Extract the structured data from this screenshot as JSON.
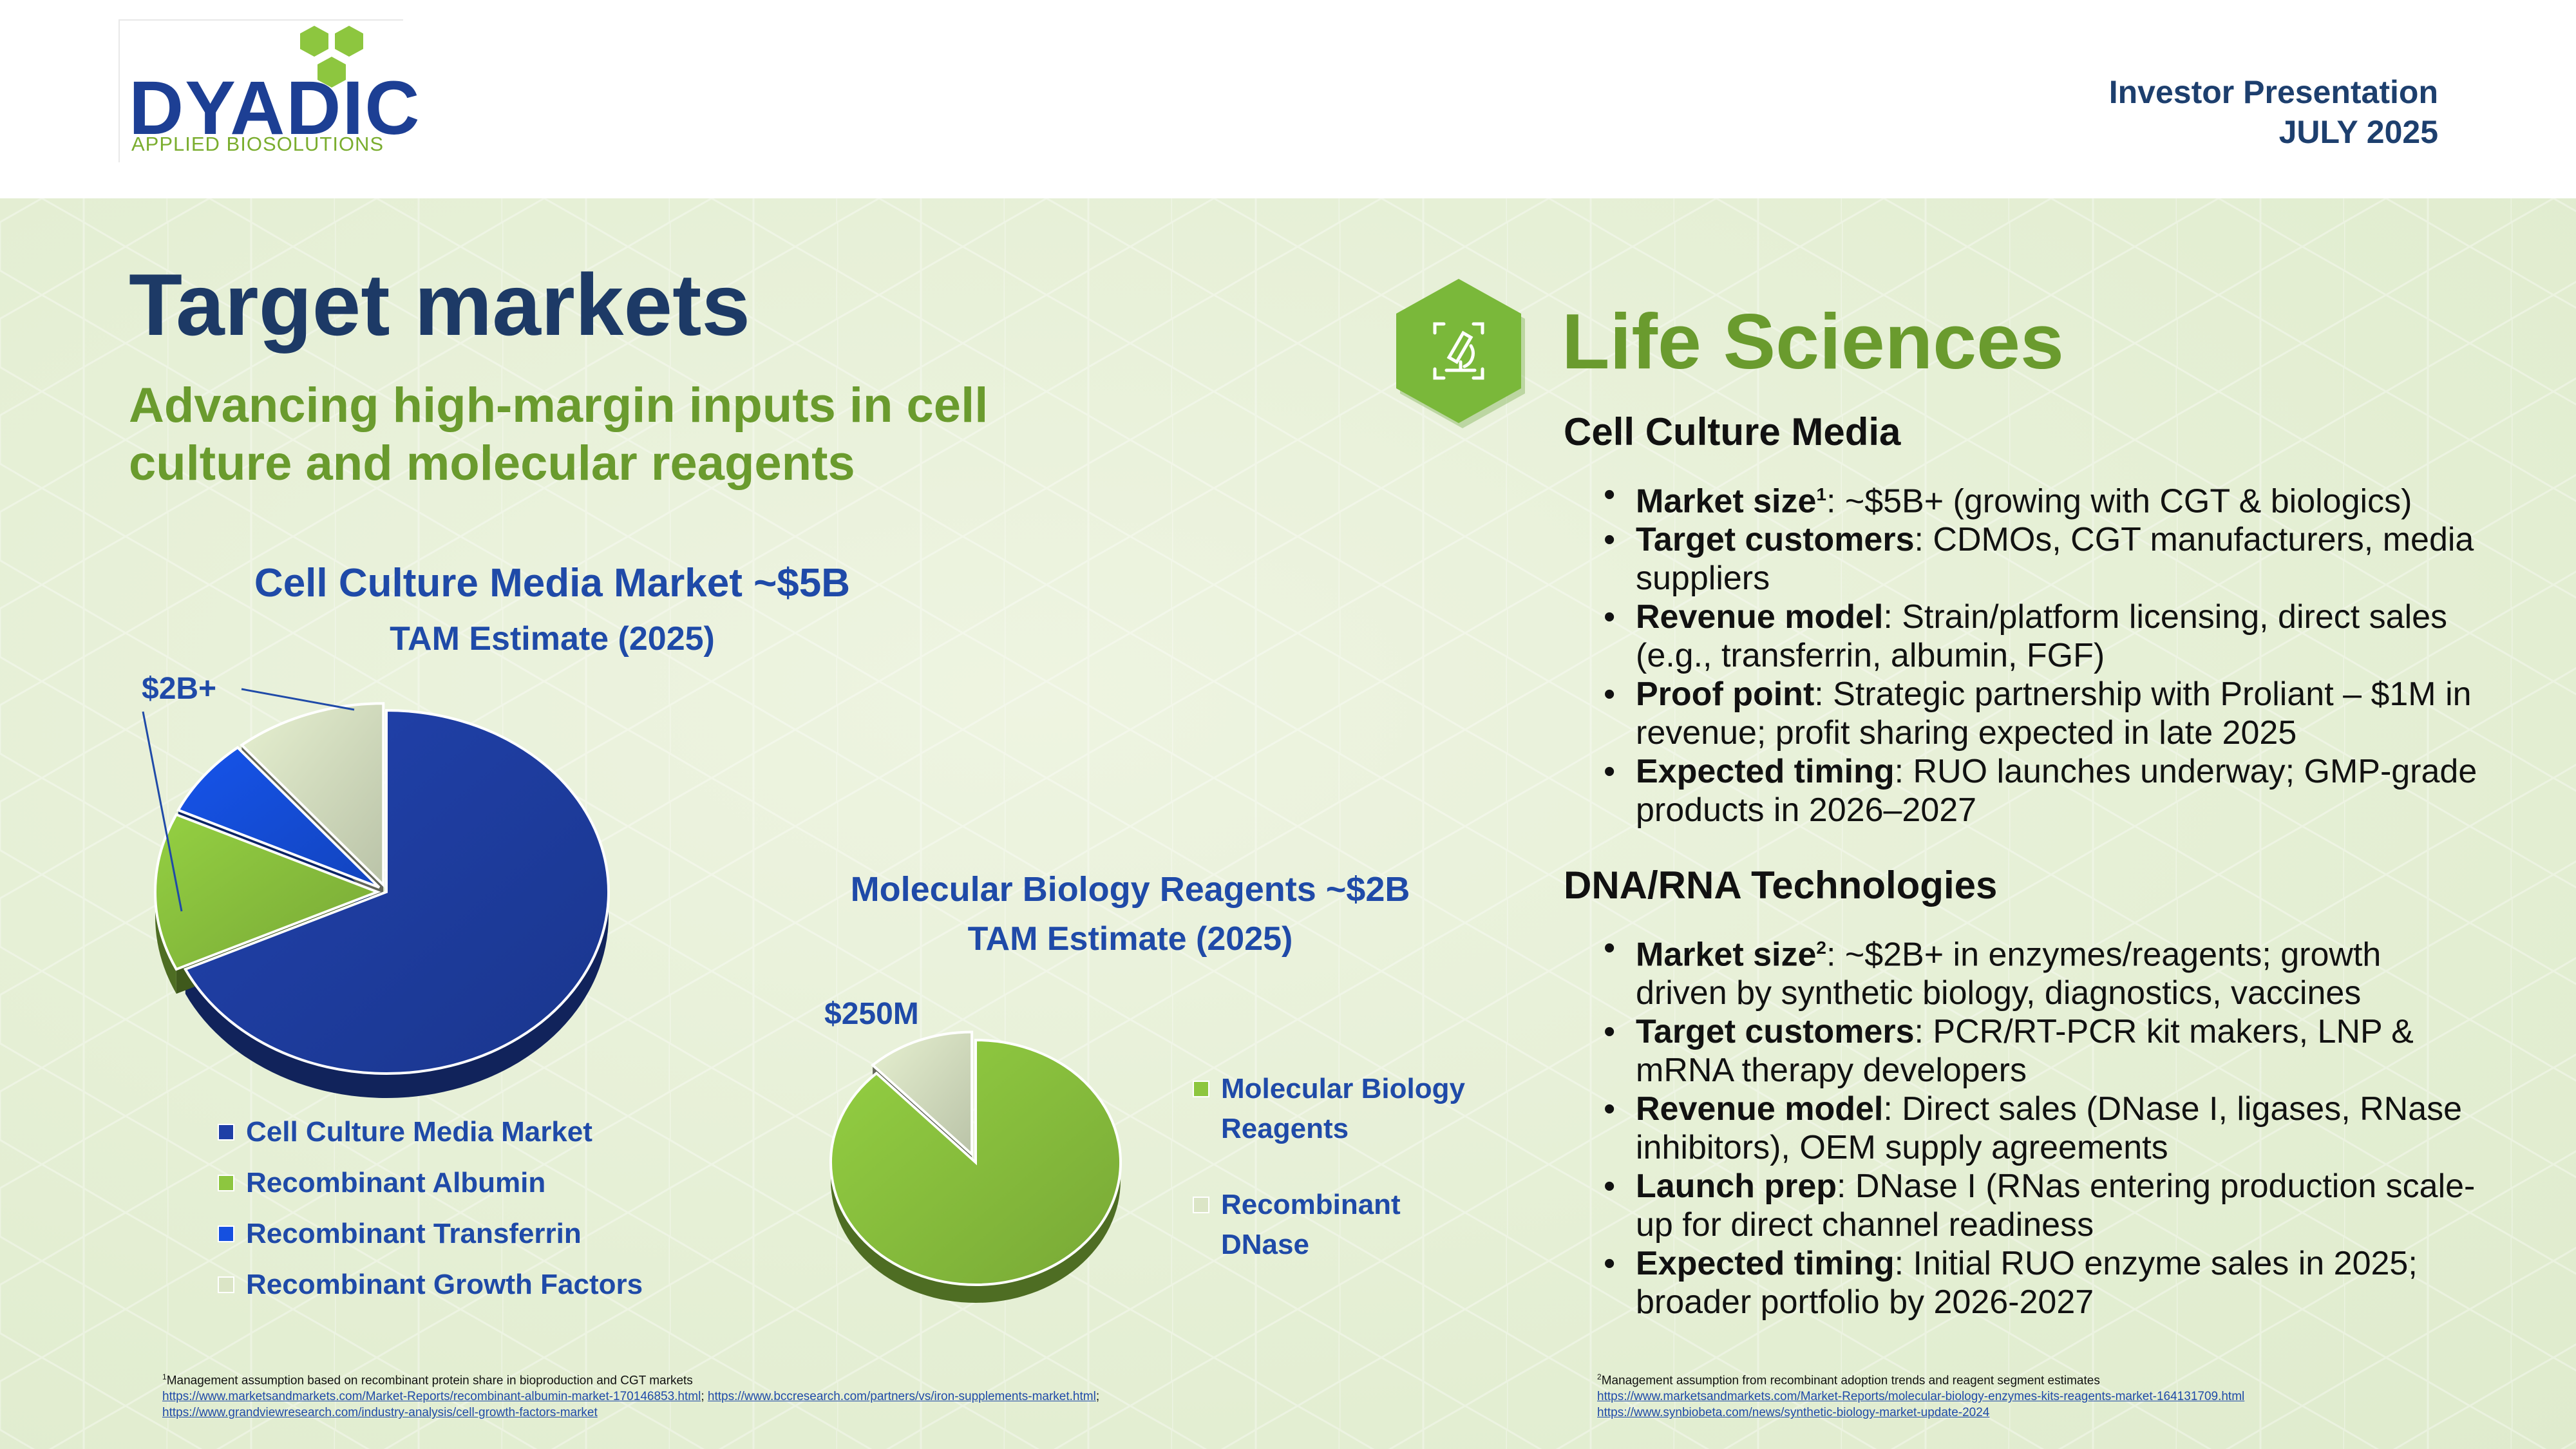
{
  "header": {
    "logo_name": "DYADIC",
    "logo_tagline": "APPLIED BIOSOLUTIONS",
    "presentation": "Investor Presentation",
    "date": "JULY 2025"
  },
  "page": {
    "title": "Target markets",
    "subtitle": "Advancing high-margin inputs in cell culture and molecular reagents"
  },
  "colors": {
    "navy_title": "#1d3a66",
    "green_accent": "#6a9b2e",
    "chart_blue": "#1f4aa8",
    "panel_bg": "#e3eed2"
  },
  "chart_data": [
    {
      "type": "pie",
      "title": "Cell Culture Media Market ~$5B",
      "subtitle": "TAM Estimate (2025)",
      "callout": "$2B+",
      "labels": [
        "Cell Culture Media Market",
        "Recombinant Albumin",
        "Recombinant Transferrin",
        "Recombinant Growth Factors"
      ],
      "values": [
        68,
        14,
        7,
        11
      ],
      "colors": [
        "#1f3fa6",
        "#8dc63f",
        "#1550e0",
        "#dbe5c6"
      ],
      "legend": "bottom-left",
      "exploded": [
        false,
        true,
        true,
        true
      ]
    },
    {
      "type": "pie",
      "title": "Molecular Biology Reagents ~$2B",
      "subtitle": "TAM  Estimate (2025)",
      "callout": "$250M",
      "labels": [
        "Molecular Biology Reagents",
        "Recombinant DNase"
      ],
      "values": [
        88,
        12
      ],
      "colors": [
        "#8dc63f",
        "#dbe5c6"
      ],
      "legend": "right",
      "exploded": [
        false,
        true
      ]
    }
  ],
  "life_sciences": {
    "icon": "microscope-icon",
    "title": "Life Sciences",
    "cell_culture": {
      "heading": "Cell Culture Media",
      "items": [
        {
          "label": "Market size",
          "sup": "1",
          "text": ": ~$5B+ (growing with CGT & biologics)"
        },
        {
          "label": "Target customers",
          "text": ": CDMOs, CGT manufacturers, media suppliers"
        },
        {
          "label": "Revenue model",
          "text": ": Strain/platform licensing, direct sales (e.g., transferrin, albumin, FGF)"
        },
        {
          "label": "Proof point",
          "text": ": Strategic partnership with Proliant – $1M in revenue; profit sharing expected in late 2025"
        },
        {
          "label": "Expected timing",
          "text": ": RUO launches underway; GMP-grade products in 2026–2027"
        }
      ]
    },
    "dna_rna": {
      "heading": "DNA/RNA Technologies",
      "items": [
        {
          "label": "Market size",
          "sup": "2",
          "text": ": ~$2B+ in enzymes/reagents; growth driven by synthetic biology, diagnostics, vaccines"
        },
        {
          "label": "Target customers",
          "text": ": PCR/RT-PCR kit makers, LNP & mRNA therapy developers"
        },
        {
          "label": "Revenue model",
          "text": ": Direct sales (DNase I, ligases, RNase inhibitors), OEM supply agreements"
        },
        {
          "label": "Launch prep",
          "text": ": DNase I (RNas entering production scale-up for direct channel readiness"
        },
        {
          "label": "Expected timing",
          "text": ": Initial RUO enzyme sales in 2025; broader portfolio by 2026-2027"
        }
      ]
    }
  },
  "footnotes": {
    "fn1": {
      "mark": "1",
      "text": "Management assumption based on recombinant protein share in bioproduction and CGT markets",
      "link1": "https://www.marketsandmarkets.com/Market-Reports/recombinant-albumin-market-170146853.html",
      "sep1": "; ",
      "link2": "https://www.bccresearch.com/partners/vs/iron-supplements-market.html",
      "sep2": "; ",
      "link3": "https://www.grandviewresearch.com/industry-analysis/cell-growth-factors-market"
    },
    "fn2": {
      "mark": "2",
      "text": "Management assumption from recombinant adoption trends and reagent segment estimates",
      "link1": "https://www.marketsandmarkets.com/Market-Reports/molecular-biology-enzymes-kits-reagents-market-164131709.html",
      "link2": "https://www.synbiobeta.com/news/synthetic-biology-market-update-2024"
    }
  }
}
